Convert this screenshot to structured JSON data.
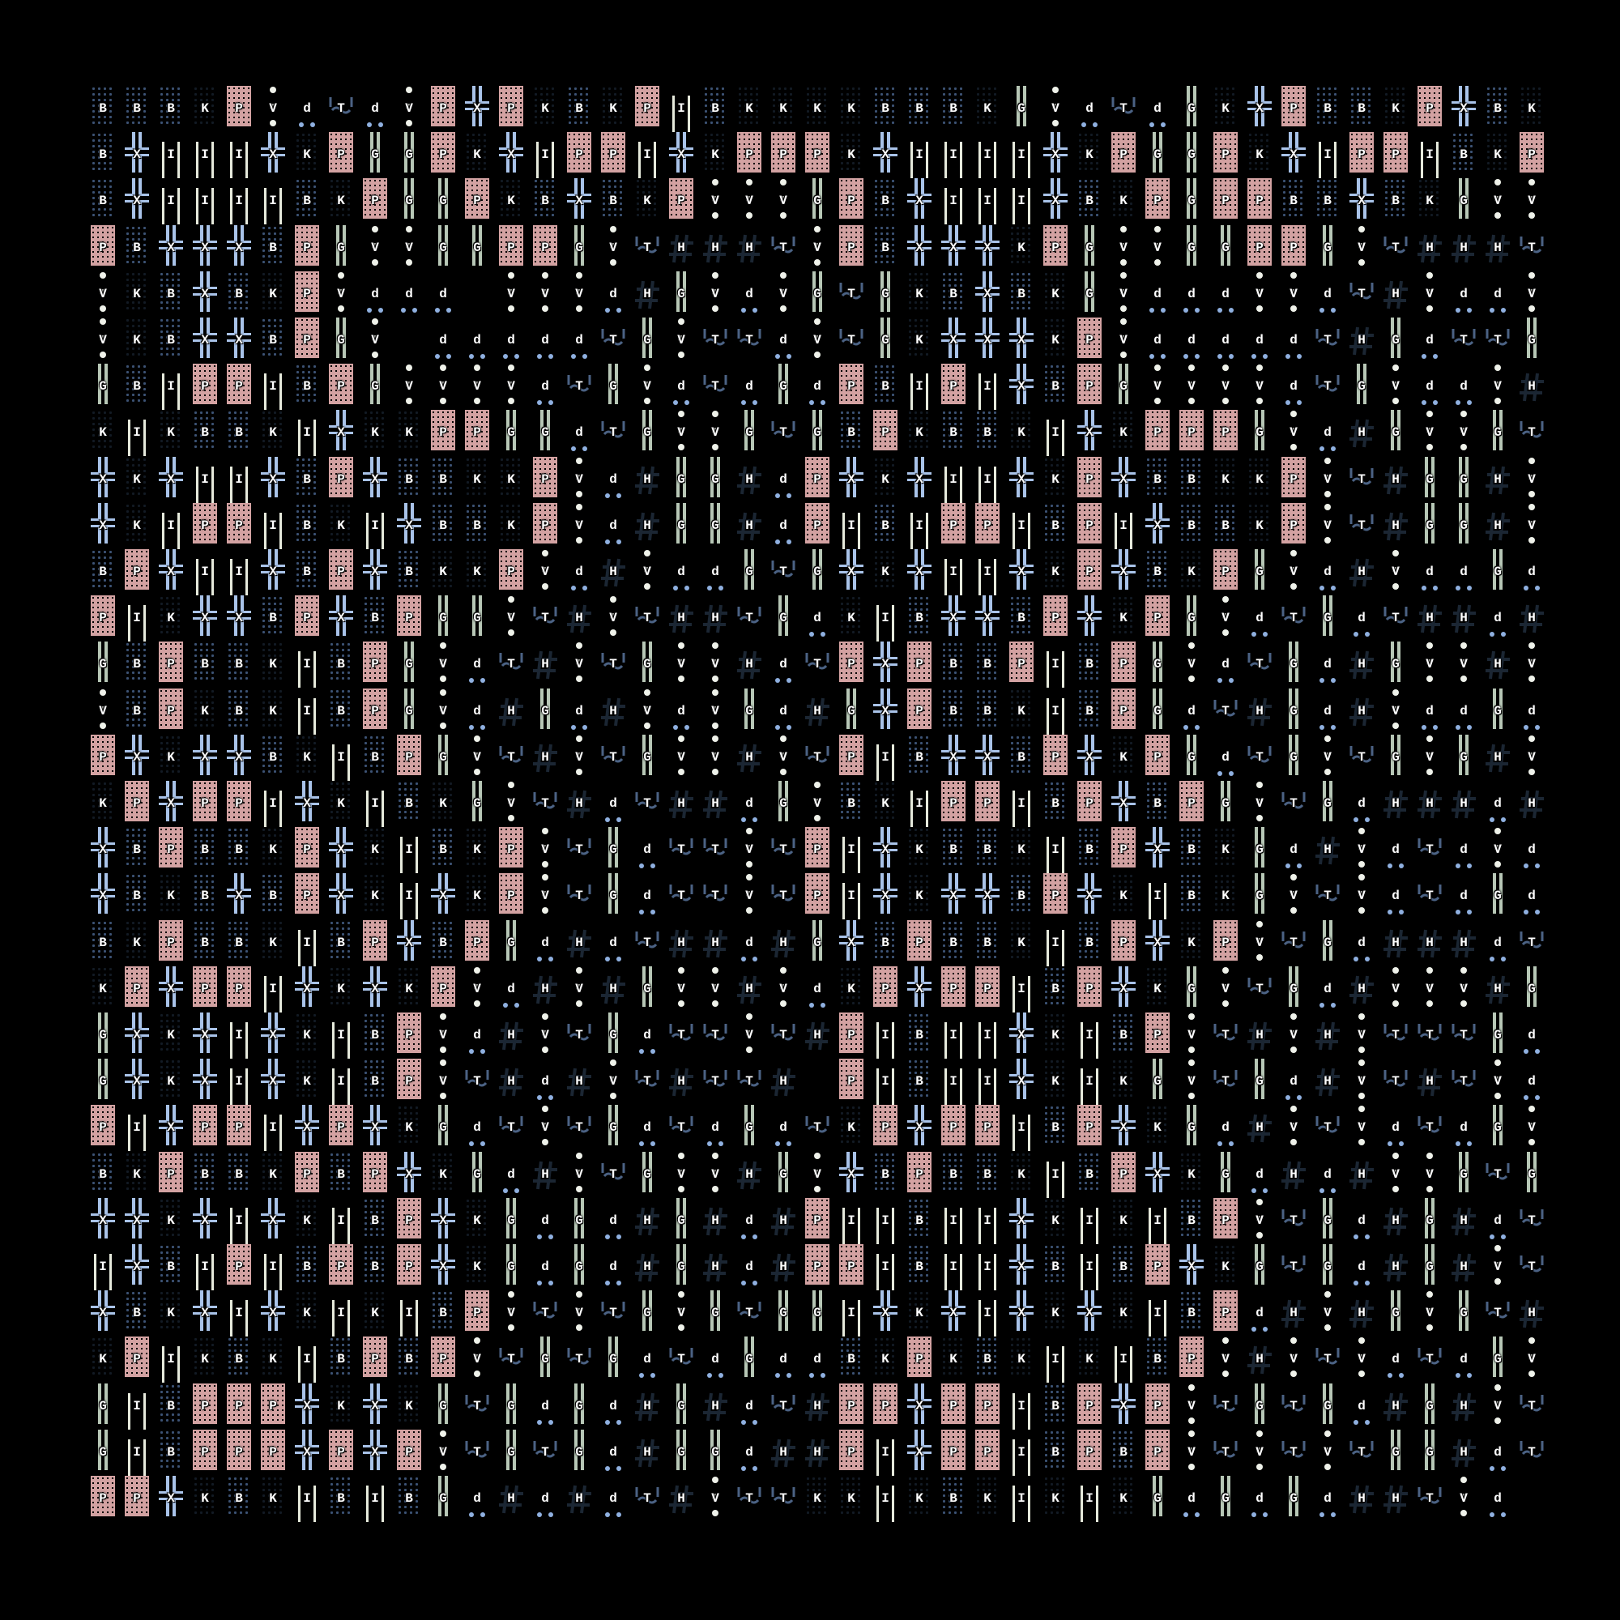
{
  "palette": {
    "P": "#d3a2a2",
    "B": "#3c5274",
    "K": "#121a24",
    "X": "#a9c3e9",
    "I": "#e6eadc",
    "G": "#b7c7b6",
    "V": "#eff2ea",
    "d": "#8fb0e0",
    "T": "#4b6284",
    "H": "#1b2633",
    "background": "#000000"
  },
  "glyph_legend": {
    "P": "pink-dotted-block",
    "B": "blue-dotted-block",
    "K": "dark-dotted-block",
    "X": "double-cross",
    "I": "white-bars",
    "G": "green-double-bar",
    "V": "vertical-dots",
    "d": "low-dots",
    "T": "tilde-face",
    "H": "hash"
  },
  "grid": [
    "BBBKPVdTdVPXPKBKPIBKKKKBBBKGVdTdGKXPBBKPXBK",
    "BXIIIXKPGGPKXIPPIXKPPPKXIIIIXKPGGPKXIPPIBKP",
    "BXIIIIBKPGGPKBXBKPVVVGPBXIIIXBKPGPPBBXBKGVV",
    "PBXXXBPGVVGGPPGVTHHHTVPBXXXKPGVVGGPPGVTHHHT",
    "VKBXBKPVddd VVVdHGVdVGTGKBXBKGVdddVVdTHVddV",
    "VKBXXBPGV dddddTGVTTdVTGKXXXKPVdddddTHGdTTG",
    "GBIPPIBPGVVVVdTGVdTdGdPBIPIXBPGVVVVdTGVddVH",
    "KIKBBKIXKKPPGGdTGVVGTGBPKBBKIXKPPPGVdHGVVGT",
    "XKXIIXBPXBBKKPVdHGGHdPXKXIIXKPXBBKKPVTHGGHV",
    "XKIPPIBKIXBBKPVdHGGHdPIBIPPIBPIXBBKPVTHGGHV",
    "BPXIIXBPXBKKPVdHVddGTGXKXIIXKPXBKPGVdHVddGd",
    "PIKXXBPXBPGGVTHVTHHTGdKIBXXBPXKPGVdTGdTHHdH",
    "GBPBBKIBPGVdTHVTGVVHdTPXPBBPIBPGVdTGdHGVVHV",
    "VBPKBKIBPGVdHGdHVdVGdHGXPBBKIBPGdTHGdHVddGd",
    "PXKXXBKIBPGVTHVTGVVHVTPIBXXBPXKPGdTGVTGVGHV",
    "KPXPPIXKIBKGVTHdTHHdGVBKIPPIBPXBPGVTGdHHHdH",
    "XBPBBKPXKIBKPVTGdTTVTPIXKBBKIBPXBKGdHVdTdVd",
    "XBKBXBPXKIXKPVTGdTTVTPIXKXXBPXKIBKGVTVdTdGd",
    "BKPBBKIBPXBPGdHdTHHdHGXBPBBKIBPXKPVTGdHHHdT",
    "KPXPPIXKXKPVdHVHGVVHVdKPXPPIBPXKGVTGdHVVVHG",
    "GXKXIXKIBPVdHVTGdTTVTHPIBIIXKIBPVTHVHVTTTGd",
    "GXKXIXKIBPVTHdHVTHTTH PIBIIXKIKGVTGdHVTHTVd",
    "PIXPPIXPXKGdTVTGdTdGdTKPXPPIBPXKGdHVTVdTdGV",
    "BKPBBKPBPXKGdHVTGVVHGVXBPBBKIBPXKGdHdHVVGTG",
    "XXKXIXKIBPXKGdGdHGHdHPIIBIIXKIKIBPVTGdHGHdT",
    "IXBIPIBPBPXKGdGdHGHdHPPIBIIXBIBPXKGTGdHGHVT",
    "XBKXIXKIKIBPVTVTGVGTGGIXKXIXKXKIBPdHVHGVGTH",
    "KPIKBKIBPBPVTGTGdTdGddBKPKBKIKIBPVHVTVdTdGV",
    "GIBPPPXKXKGTGdGdHGHdTHPPXPPIBPXPVTGTGdHGHVT",
    "GIBPPPXPXPVTGTGdHGGdHHPIXPPIBPBPVTVTVTGGHdT",
    "PPXKBKIBIBGdHdHdTHVTTKKIKBKIKIKGdGdGdHHTVd"
  ]
}
